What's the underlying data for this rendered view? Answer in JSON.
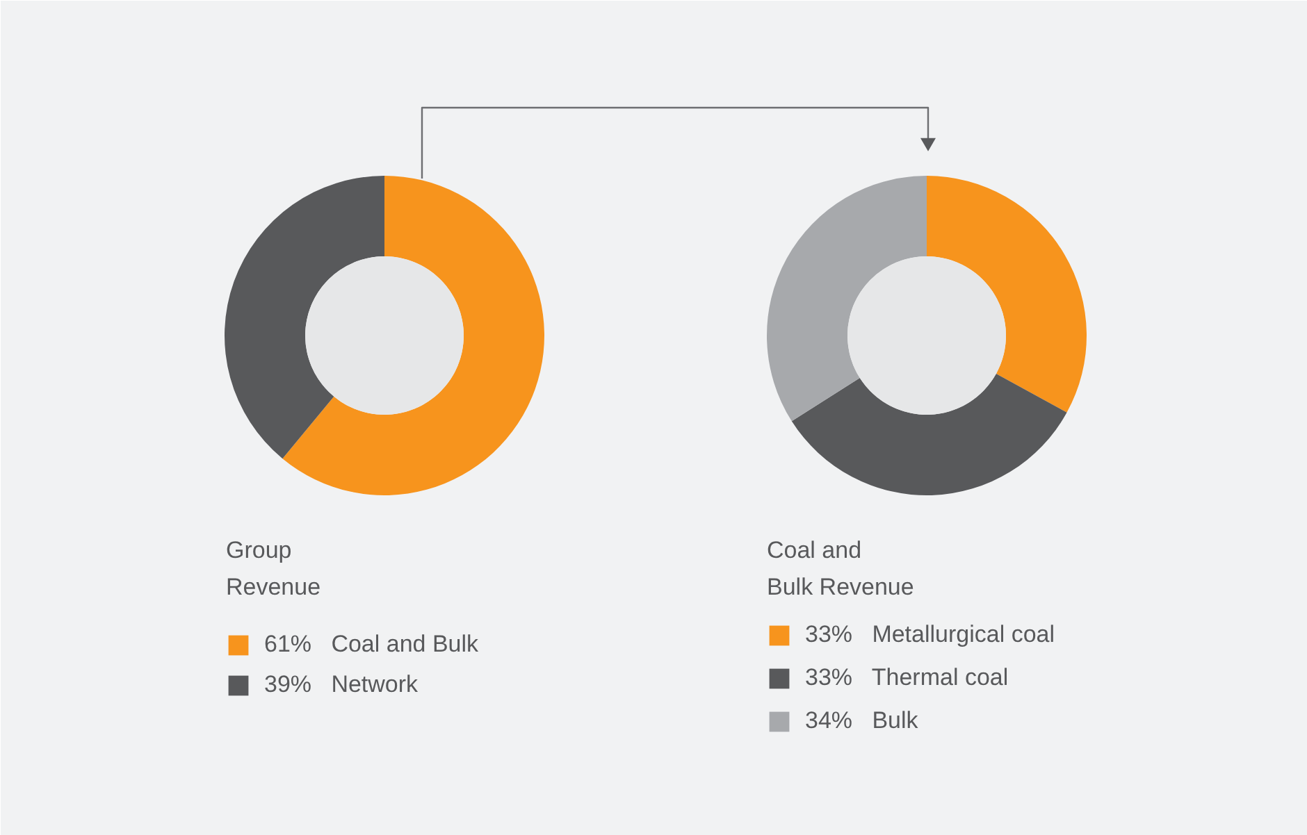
{
  "chart_data": [
    {
      "type": "donut",
      "title": "Group\nRevenue",
      "categories": [
        "Coal and Bulk",
        "Network"
      ],
      "values": [
        61,
        39
      ],
      "colors": [
        "#f7941d",
        "#58595b"
      ],
      "value_labels": [
        "61%",
        "39%"
      ],
      "legend": "bottom"
    },
    {
      "type": "donut",
      "title": "Coal and\nBulk Revenue",
      "categories": [
        "Metallurgical coal",
        "Thermal coal",
        "Bulk"
      ],
      "values": [
        33,
        33,
        34
      ],
      "colors": [
        "#f7941d",
        "#58595b",
        "#a7a9ac"
      ],
      "value_labels": [
        "33%",
        "33%",
        "34%"
      ],
      "legend": "bottom"
    }
  ]
}
